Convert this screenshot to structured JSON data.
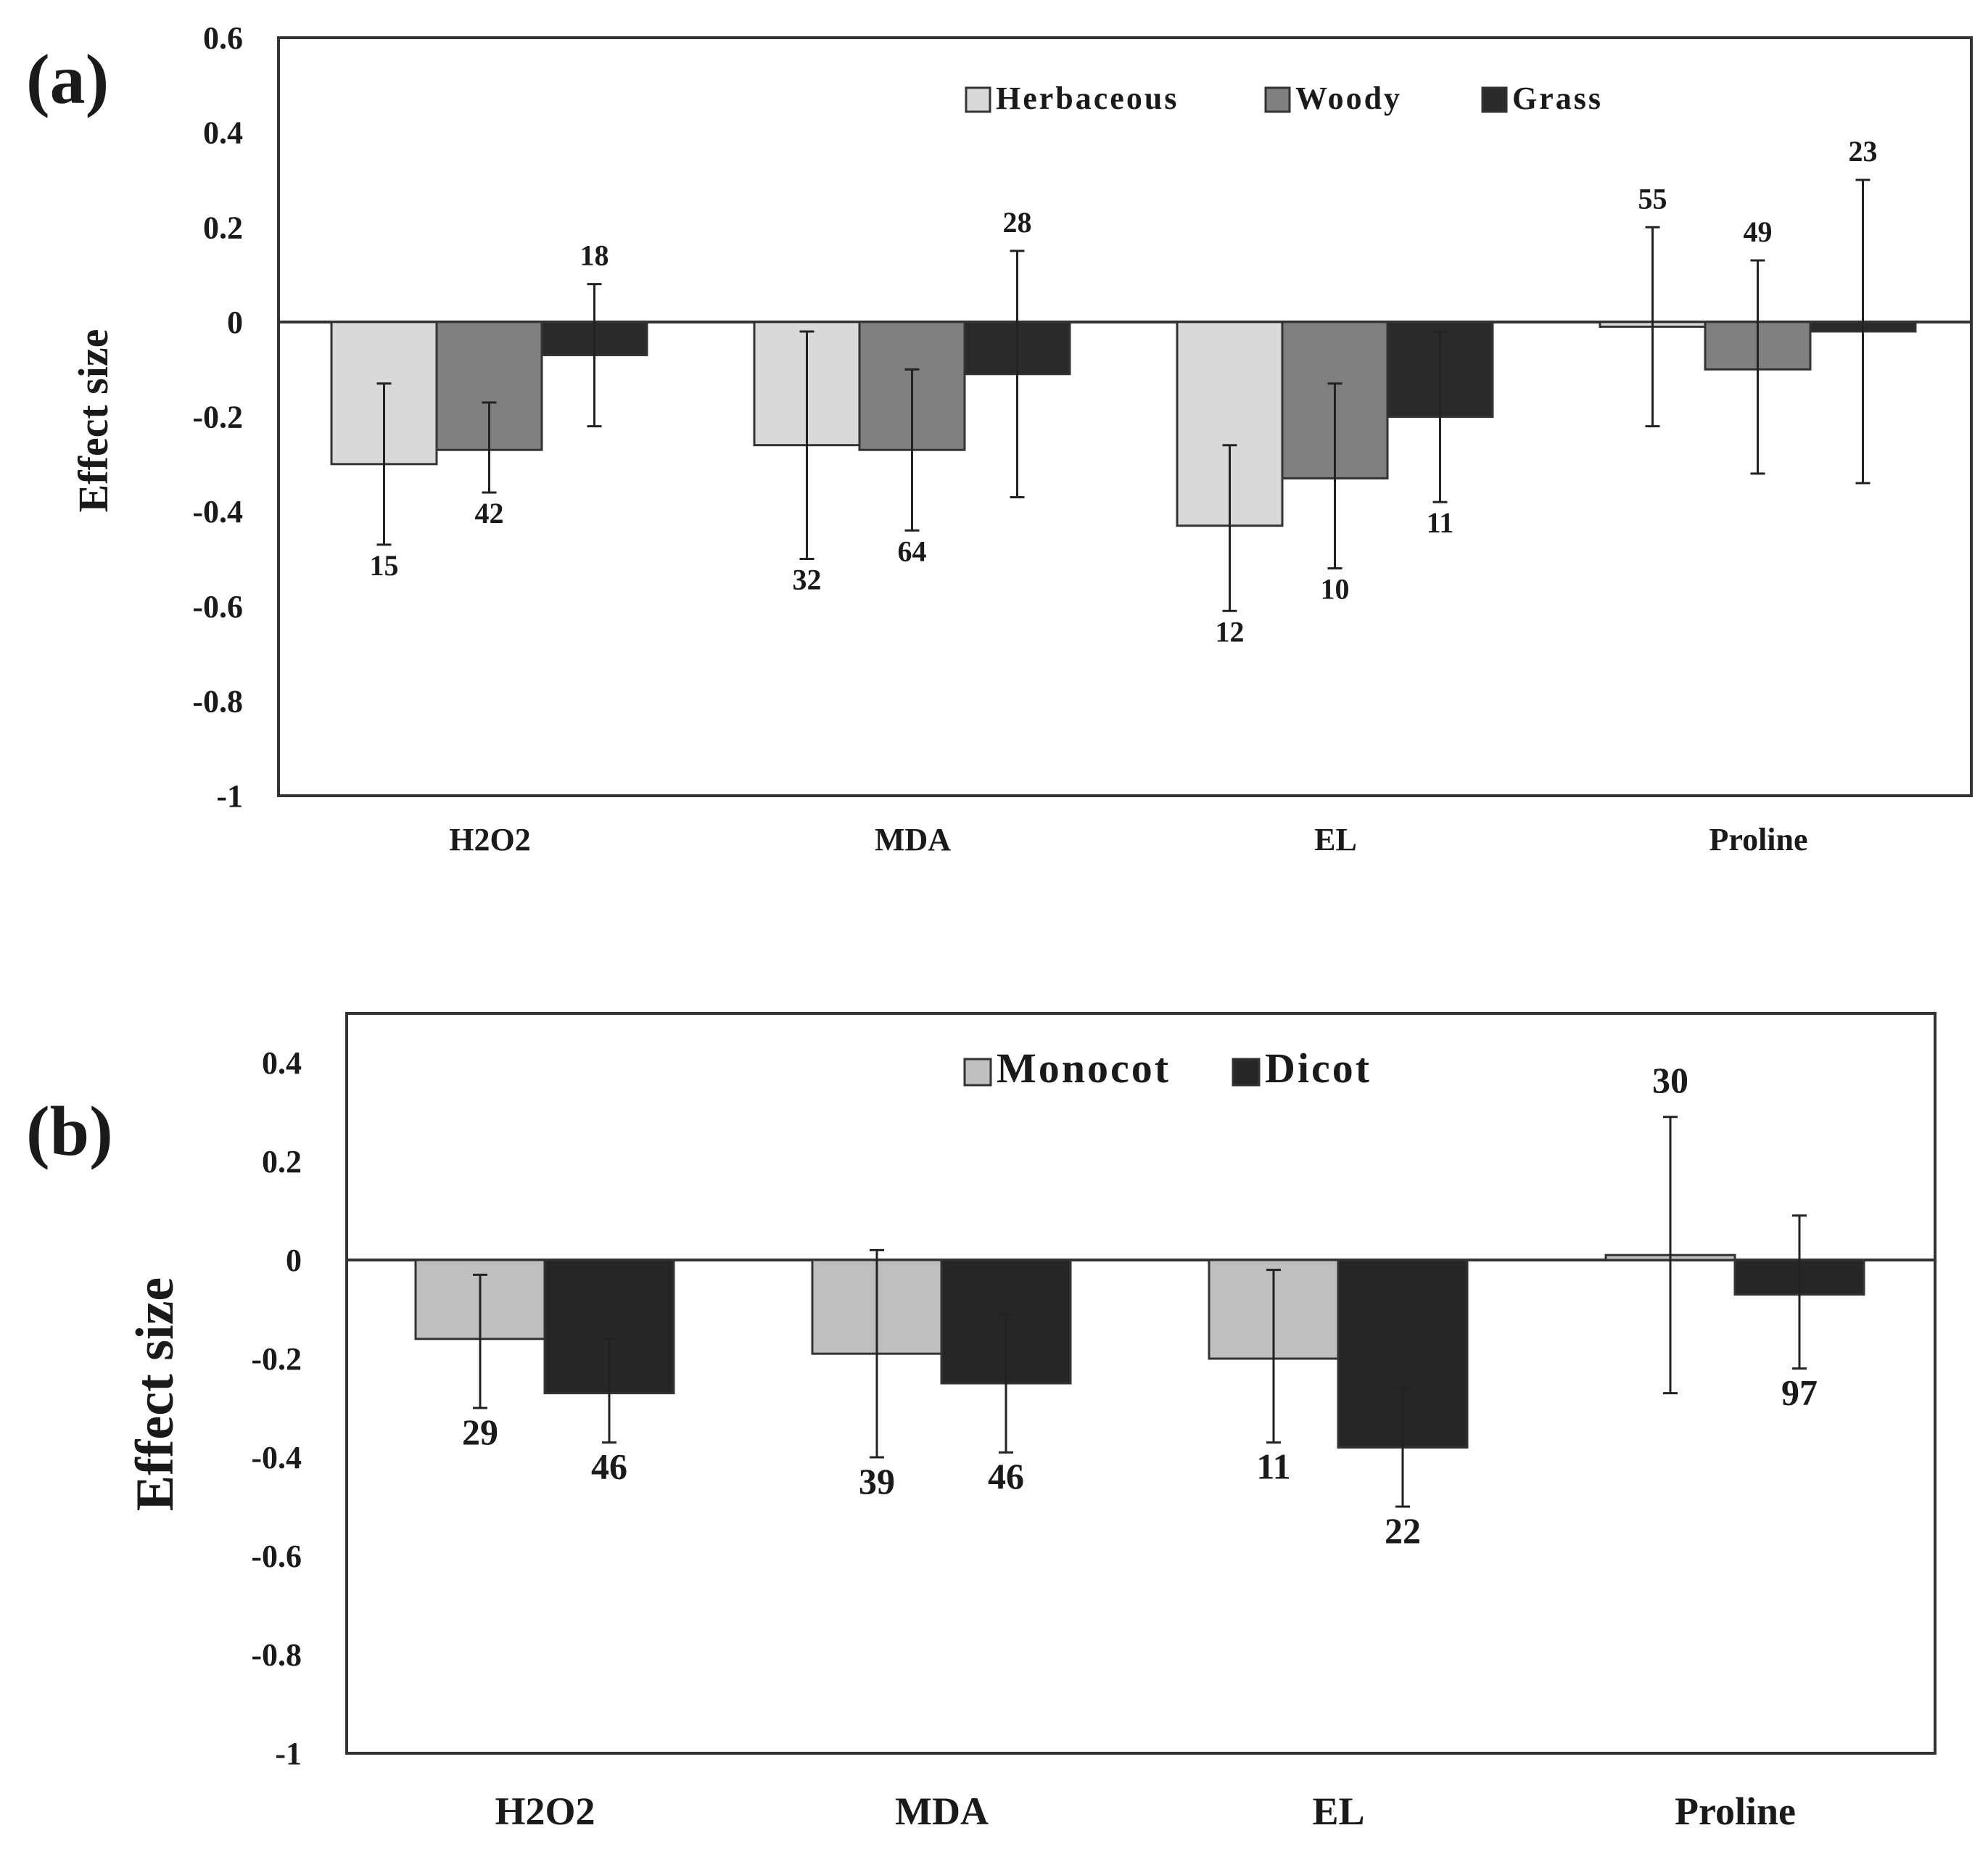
{
  "chart_data": [
    {
      "type": "bar",
      "panel_label": "(a)",
      "title": "",
      "xlabel": "",
      "ylabel": "Effect size",
      "ylim": [
        -1,
        0.6
      ],
      "yticks": [
        0.6,
        0.4,
        0.2,
        0,
        -0.2,
        -0.4,
        -0.6,
        -0.8,
        -1
      ],
      "ytick_labels": [
        "0.6",
        "0.4",
        "0.2",
        "0",
        "-0.2",
        "-0.4",
        "-0.6",
        "-0.8",
        "-1"
      ],
      "categories": [
        "H2O2",
        "MDA",
        "EL",
        "Proline"
      ],
      "legend_position": "top-right",
      "series": [
        {
          "name": "Herbaceous",
          "color": "#d9d9d9",
          "values": [
            -0.3,
            -0.26,
            -0.43,
            -0.01
          ],
          "err_low": [
            -0.47,
            -0.5,
            -0.61,
            -0.22
          ],
          "err_high": [
            -0.13,
            -0.02,
            -0.26,
            0.2
          ],
          "n": [
            "15",
            "32",
            "12",
            "55"
          ],
          "n_pos": [
            "below",
            "below",
            "below",
            "above"
          ]
        },
        {
          "name": "Woody",
          "color": "#808080",
          "values": [
            -0.27,
            -0.27,
            -0.33,
            -0.1
          ],
          "err_low": [
            -0.36,
            -0.44,
            -0.52,
            -0.32
          ],
          "err_high": [
            -0.17,
            -0.1,
            -0.13,
            0.13
          ],
          "n": [
            "42",
            "64",
            "10",
            "49"
          ],
          "n_pos": [
            "below",
            "below",
            "below",
            "above"
          ]
        },
        {
          "name": "Grass",
          "color": "#2a2a2a",
          "values": [
            -0.07,
            -0.11,
            -0.2,
            -0.02
          ],
          "err_low": [
            -0.22,
            -0.37,
            -0.38,
            -0.34
          ],
          "err_high": [
            0.08,
            0.15,
            -0.02,
            0.3
          ],
          "n": [
            "18",
            "28",
            "11",
            "23"
          ],
          "n_pos": [
            "above",
            "above",
            "below",
            "above"
          ]
        }
      ]
    },
    {
      "type": "bar",
      "panel_label": "(b)",
      "title": "",
      "xlabel": "",
      "ylabel": "Effect size",
      "ylim": [
        -1,
        0.5
      ],
      "yticks": [
        0.4,
        0.2,
        0,
        -0.2,
        -0.4,
        -0.6,
        -0.8,
        -1
      ],
      "ytick_labels": [
        "0.4",
        "0.2",
        "0",
        "-0.2",
        "-0.4",
        "-0.6",
        "-0.8",
        "-1"
      ],
      "categories": [
        "H2O2",
        "MDA",
        "EL",
        "Proline"
      ],
      "legend_position": "top-center",
      "series": [
        {
          "name": "Monocot",
          "color": "#bfbfbf",
          "values": [
            -0.16,
            -0.19,
            -0.2,
            0.01
          ],
          "err_low": [
            -0.3,
            -0.4,
            -0.37,
            -0.27
          ],
          "err_high": [
            -0.03,
            0.02,
            -0.02,
            0.29
          ],
          "n": [
            "29",
            "39",
            "11",
            "30"
          ],
          "n_pos": [
            "below",
            "below",
            "below",
            "above"
          ]
        },
        {
          "name": "Dicot",
          "color": "#262626",
          "values": [
            -0.27,
            -0.25,
            -0.38,
            -0.07
          ],
          "err_low": [
            -0.37,
            -0.39,
            -0.5,
            -0.22
          ],
          "err_high": [
            -0.16,
            -0.11,
            -0.26,
            0.09
          ],
          "n": [
            "46",
            "46",
            "22",
            "97"
          ],
          "n_pos": [
            "below",
            "below",
            "below",
            "below"
          ]
        }
      ]
    }
  ]
}
